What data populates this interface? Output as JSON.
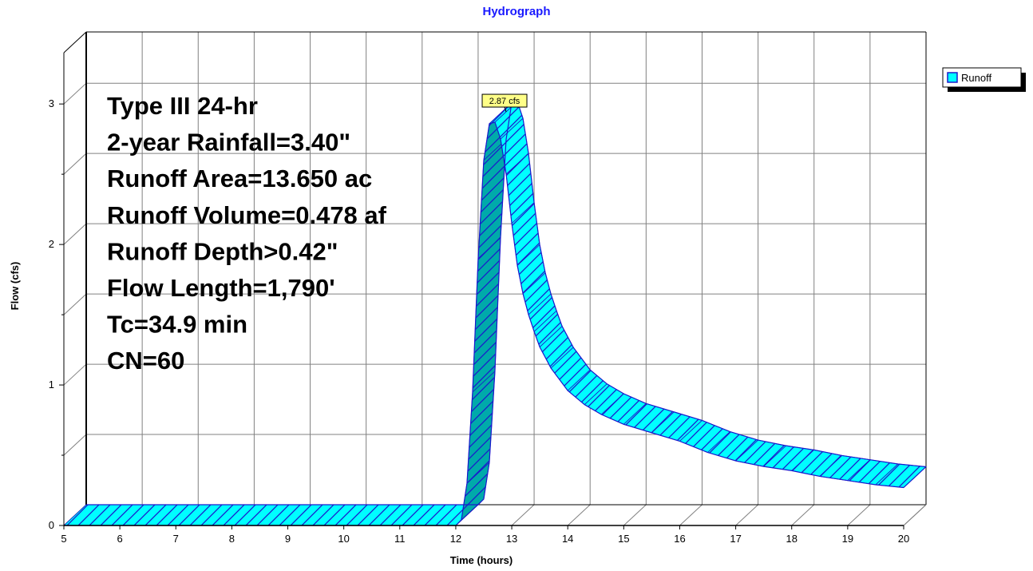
{
  "chart_data": {
    "type": "area",
    "title": "Hydrograph",
    "xlabel": "Time  (hours)",
    "ylabel": "Flow  (cfs)",
    "xlim": [
      5,
      20
    ],
    "ylim": [
      0,
      3.2
    ],
    "x_ticks": [
      "5",
      "6",
      "7",
      "8",
      "9",
      "10",
      "11",
      "12",
      "13",
      "14",
      "15",
      "16",
      "17",
      "18",
      "19",
      "20"
    ],
    "y_ticks": [
      "0",
      "1",
      "2",
      "3"
    ],
    "grid": true,
    "legend": {
      "placement": "top-right",
      "entries": [
        "Runoff"
      ]
    },
    "series": [
      {
        "name": "Runoff",
        "color": "#00ffff",
        "x": [
          5,
          12.0,
          12.1,
          12.2,
          12.3,
          12.4,
          12.5,
          12.6,
          12.7,
          12.8,
          12.9,
          13.0,
          13.1,
          13.2,
          13.3,
          13.4,
          13.5,
          13.7,
          14.0,
          14.3,
          14.6,
          15.0,
          15.5,
          16.0,
          16.5,
          17.0,
          17.5,
          18.0,
          18.5,
          19.0,
          19.5,
          20.0
        ],
        "y": [
          0,
          0,
          0.04,
          0.3,
          0.95,
          1.9,
          2.6,
          2.86,
          2.87,
          2.75,
          2.5,
          2.15,
          1.85,
          1.65,
          1.5,
          1.38,
          1.27,
          1.12,
          0.96,
          0.86,
          0.79,
          0.72,
          0.66,
          0.6,
          0.52,
          0.46,
          0.42,
          0.39,
          0.35,
          0.32,
          0.29,
          0.27
        ]
      }
    ],
    "peak_label": {
      "text": "2.87 cfs",
      "x": 12.7,
      "y": 2.87
    },
    "annotation_lines": [
      "Type III 24-hr",
      "2-year Rainfall=3.40\"",
      "Runoff Area=13.650 ac",
      "Runoff Volume=0.478 af",
      "Runoff Depth>0.42\"",
      "Flow Length=1,790'",
      "Tc=34.9 min",
      "CN=60"
    ]
  }
}
